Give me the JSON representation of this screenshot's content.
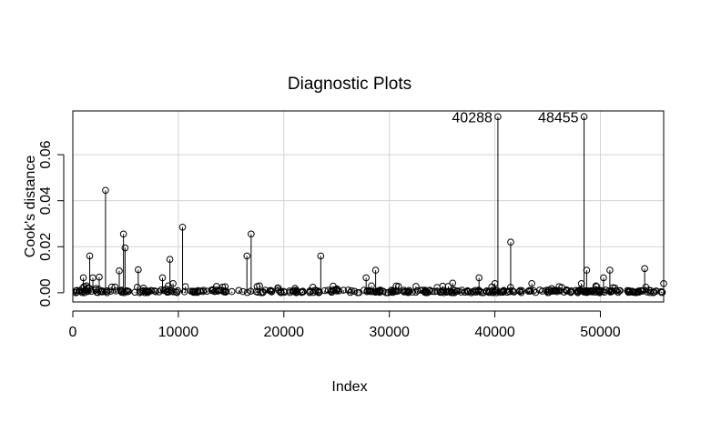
{
  "chart_data": {
    "type": "scatter",
    "title": "Diagnostic Plots",
    "xlabel": "Index",
    "ylabel": "Cook's distance",
    "xlim": [
      0,
      56000
    ],
    "ylim": [
      -0.004,
      0.079
    ],
    "xticks": [
      0,
      10000,
      20000,
      30000,
      40000,
      50000
    ],
    "xtick_labels": [
      "0",
      "10000",
      "20000",
      "30000",
      "40000",
      "50000"
    ],
    "yticks": [
      0.0,
      0.02,
      0.04,
      0.06
    ],
    "ytick_labels": [
      "0.00",
      "0.02",
      "0.04",
      "0.06"
    ],
    "grid": true,
    "style": "vertical lines from zero to each point, open circle markers",
    "labeled_points": [
      {
        "label": "40288",
        "x": 40288,
        "y": 0.0765
      },
      {
        "label": "48455",
        "x": 48455,
        "y": 0.0765
      }
    ],
    "points": [
      {
        "x": 300,
        "y": 0.0
      },
      {
        "x": 1000,
        "y": 0.0065
      },
      {
        "x": 1300,
        "y": 0.003
      },
      {
        "x": 1600,
        "y": 0.016
      },
      {
        "x": 1900,
        "y": 0.0065
      },
      {
        "x": 2500,
        "y": 0.0068
      },
      {
        "x": 3100,
        "y": 0.0445
      },
      {
        "x": 4000,
        "y": 0.0025
      },
      {
        "x": 4400,
        "y": 0.0095
      },
      {
        "x": 4800,
        "y": 0.0255
      },
      {
        "x": 4950,
        "y": 0.0195
      },
      {
        "x": 6200,
        "y": 0.01
      },
      {
        "x": 6700,
        "y": 0.002
      },
      {
        "x": 8500,
        "y": 0.0065
      },
      {
        "x": 9200,
        "y": 0.0145
      },
      {
        "x": 9500,
        "y": 0.004
      },
      {
        "x": 10400,
        "y": 0.0285
      },
      {
        "x": 16500,
        "y": 0.016
      },
      {
        "x": 16900,
        "y": 0.0255
      },
      {
        "x": 23500,
        "y": 0.016
      },
      {
        "x": 27800,
        "y": 0.0065
      },
      {
        "x": 28300,
        "y": 0.003
      },
      {
        "x": 28700,
        "y": 0.0098
      },
      {
        "x": 36000,
        "y": 0.0042
      },
      {
        "x": 38500,
        "y": 0.0065
      },
      {
        "x": 40000,
        "y": 0.004
      },
      {
        "x": 40288,
        "y": 0.0765
      },
      {
        "x": 41500,
        "y": 0.022
      },
      {
        "x": 43500,
        "y": 0.004
      },
      {
        "x": 48200,
        "y": 0.004
      },
      {
        "x": 48455,
        "y": 0.0765
      },
      {
        "x": 48700,
        "y": 0.0098
      },
      {
        "x": 50300,
        "y": 0.0065
      },
      {
        "x": 50900,
        "y": 0.0098
      },
      {
        "x": 54200,
        "y": 0.0105
      },
      {
        "x": 56000,
        "y": 0.004
      }
    ]
  }
}
